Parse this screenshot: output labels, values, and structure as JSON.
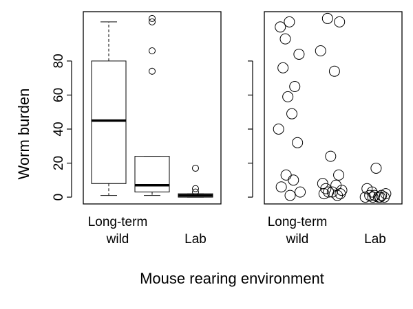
{
  "chart_data": {
    "type": "box-and-jitter",
    "xlabel": "Mouse rearing environment",
    "ylabel": "Worm burden",
    "ylim": [
      -4,
      109
    ],
    "yticks": [
      0,
      20,
      40,
      60,
      80
    ],
    "categories": [
      "Long-term\nwild",
      "",
      "Lab"
    ],
    "panels": [
      {
        "type": "box",
        "boxes": [
          {
            "min": 1,
            "q1": 8,
            "median": 45,
            "q3": 80,
            "max": 103,
            "outliers": []
          },
          {
            "min": 1,
            "q1": 3,
            "median": 7,
            "q3": 24,
            "max": 24,
            "outliers": [
              74,
              86,
              103,
              105
            ]
          },
          {
            "min": 0,
            "q1": 0,
            "median": 1,
            "q3": 2,
            "max": 2,
            "outliers": [
              3,
              5,
              17
            ]
          }
        ]
      },
      {
        "type": "scatter",
        "points": [
          {
            "group": 1,
            "y": 103
          },
          {
            "group": 1,
            "y": 100
          },
          {
            "group": 1,
            "y": 93
          },
          {
            "group": 1,
            "y": 84
          },
          {
            "group": 1,
            "y": 76
          },
          {
            "group": 1,
            "y": 65
          },
          {
            "group": 1,
            "y": 59
          },
          {
            "group": 1,
            "y": 49
          },
          {
            "group": 1,
            "y": 40
          },
          {
            "group": 1,
            "y": 32
          },
          {
            "group": 1,
            "y": 13
          },
          {
            "group": 1,
            "y": 10
          },
          {
            "group": 1,
            "y": 6
          },
          {
            "group": 1,
            "y": 3
          },
          {
            "group": 1,
            "y": 1
          },
          {
            "group": 2,
            "y": 105
          },
          {
            "group": 2,
            "y": 103
          },
          {
            "group": 2,
            "y": 86
          },
          {
            "group": 2,
            "y": 74
          },
          {
            "group": 2,
            "y": 24
          },
          {
            "group": 2,
            "y": 13
          },
          {
            "group": 2,
            "y": 8
          },
          {
            "group": 2,
            "y": 7
          },
          {
            "group": 2,
            "y": 5
          },
          {
            "group": 2,
            "y": 4
          },
          {
            "group": 2,
            "y": 3
          },
          {
            "group": 2,
            "y": 3
          },
          {
            "group": 2,
            "y": 2
          },
          {
            "group": 2,
            "y": 2
          },
          {
            "group": 2,
            "y": 1
          },
          {
            "group": 3,
            "y": 17
          },
          {
            "group": 3,
            "y": 5
          },
          {
            "group": 3,
            "y": 3
          },
          {
            "group": 3,
            "y": 2
          },
          {
            "group": 3,
            "y": 1
          },
          {
            "group": 3,
            "y": 1
          },
          {
            "group": 3,
            "y": 1
          },
          {
            "group": 3,
            "y": 0
          },
          {
            "group": 3,
            "y": 0
          },
          {
            "group": 3,
            "y": 0
          },
          {
            "group": 3,
            "y": 0
          },
          {
            "group": 3,
            "y": 0
          }
        ]
      }
    ]
  }
}
